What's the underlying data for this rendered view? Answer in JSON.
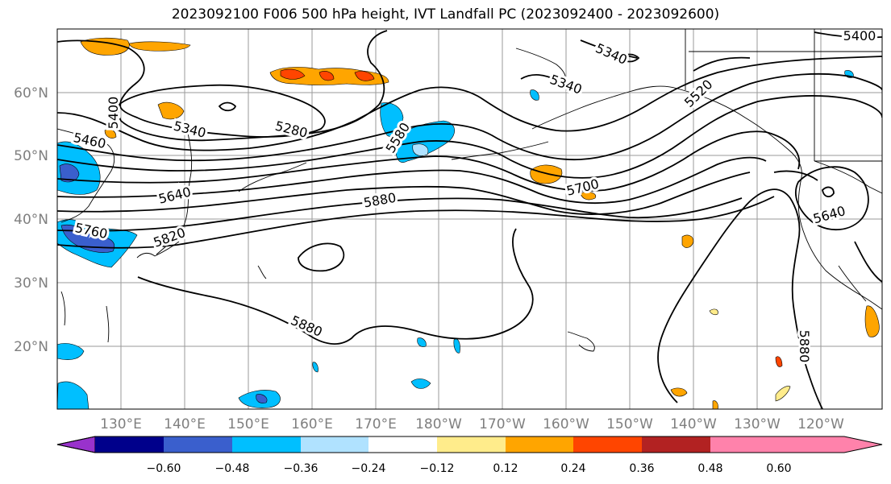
{
  "title": "2023092100 F006 500 hPa height, IVT Landfall PC (2023092400 - 2023092600)",
  "lat_labels": [
    "60°N",
    "50°N",
    "40°N",
    "30°N",
    "20°N"
  ],
  "lon_labels": [
    "130°E",
    "140°E",
    "150°E",
    "160°E",
    "170°E",
    "180°W",
    "170°W",
    "160°W",
    "150°W",
    "140°W",
    "130°W",
    "120°W"
  ],
  "contour_labels": [
    "5400",
    "5460",
    "5340",
    "5280",
    "5580",
    "5340",
    "5340",
    "5400",
    "5520",
    "5640",
    "5880",
    "5760",
    "5820",
    "5700",
    "5640",
    "5880",
    "5880"
  ],
  "colorbar": {
    "ticks": [
      "−0.60",
      "−0.48",
      "−0.36",
      "−0.24",
      "−0.12",
      "0.12",
      "0.24",
      "0.36",
      "0.48",
      "0.60"
    ],
    "colors": [
      "#9932cc",
      "#00008b",
      "#3a5fcd",
      "#00bfff",
      "#b0e2ff",
      "#ffffff",
      "#ffec8b",
      "#ffa500",
      "#ff4500",
      "#b22222",
      "#ff82ab"
    ]
  }
}
